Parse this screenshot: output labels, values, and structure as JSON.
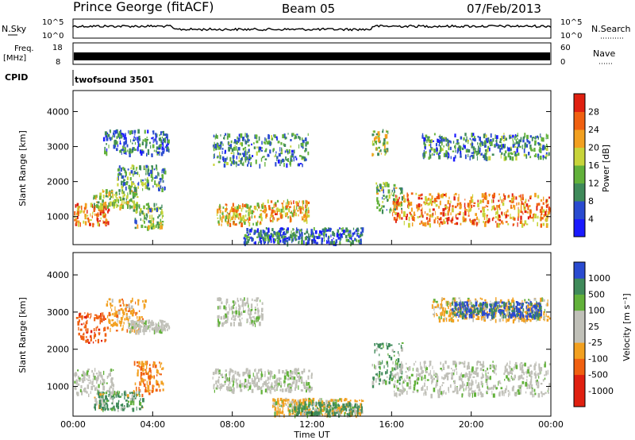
{
  "header": {
    "station": "Prince George (fitACF)",
    "beam": "Beam 05",
    "date": "07/Feb/2013"
  },
  "top_panels": {
    "nsky_label": "N.Sky",
    "nsky_ticks": [
      "10^5",
      "10^0"
    ],
    "nsearch_label": "N.Search",
    "nsearch_ticks": [
      "10^5",
      "10^0"
    ],
    "freq_label": "Freq.",
    "freq_unit": "[MHz]",
    "freq_ticks": [
      "18",
      "8"
    ],
    "nave_label": "Nave",
    "nave_ticks": [
      "60",
      "0"
    ],
    "cpid_label": "CPID",
    "cpid_value": "twofsound 3501"
  },
  "colors": {
    "power": [
      "#1a1aff",
      "#2a4bd0",
      "#3f8a5a",
      "#62b13a",
      "#c8d43a",
      "#f2a020",
      "#f06010",
      "#e02010"
    ],
    "velocity": [
      "#e02010",
      "#f06010",
      "#f2a020",
      "#c0c0b8",
      "#c0c0b8",
      "#62b13a",
      "#3f8a5a",
      "#2a4bd0"
    ]
  },
  "chart_data": [
    {
      "type": "heatmap",
      "title": "Power",
      "ylabel": "Slant Range [km]",
      "xlabel": "",
      "xlim": [
        "00:00",
        "24:00"
      ],
      "ylim": [
        200,
        4600
      ],
      "yticks": [
        "1000",
        "2000",
        "3000",
        "4000"
      ],
      "colorbar_label": "Power [dB]",
      "colorbar_ticks": [
        "4",
        "8",
        "12",
        "16",
        "20",
        "24",
        "28"
      ],
      "colorbar_range": [
        0,
        32
      ],
      "echo_regions": [
        {
          "t0": 0.0,
          "t1": 1.8,
          "r0": 800,
          "r1": 1400,
          "power": 24
        },
        {
          "t0": 1.0,
          "t1": 3.2,
          "r0": 1300,
          "r1": 1800,
          "power": 16
        },
        {
          "t0": 2.2,
          "t1": 4.6,
          "r0": 1800,
          "r1": 2500,
          "power": 12
        },
        {
          "t0": 3.0,
          "t1": 4.5,
          "r0": 700,
          "r1": 1400,
          "power": 14
        },
        {
          "t0": 1.5,
          "t1": 4.8,
          "r0": 2800,
          "r1": 3500,
          "power": 8
        },
        {
          "t0": 7.2,
          "t1": 9.5,
          "r0": 800,
          "r1": 1400,
          "power": 20
        },
        {
          "t0": 9.5,
          "t1": 11.8,
          "r0": 900,
          "r1": 1500,
          "power": 22
        },
        {
          "t0": 7.0,
          "t1": 11.8,
          "r0": 2500,
          "r1": 3400,
          "power": 10
        },
        {
          "t0": 8.5,
          "t1": 14.5,
          "r0": 250,
          "r1": 700,
          "power": 8
        },
        {
          "t0": 15.2,
          "t1": 16.5,
          "r0": 1200,
          "r1": 2000,
          "power": 14
        },
        {
          "t0": 16.0,
          "t1": 24.0,
          "r0": 800,
          "r1": 1700,
          "power": 24
        },
        {
          "t0": 17.5,
          "t1": 24.0,
          "r0": 2700,
          "r1": 3400,
          "power": 10
        },
        {
          "t0": 15.0,
          "t1": 15.8,
          "r0": 2800,
          "r1": 3500,
          "power": 16
        }
      ]
    },
    {
      "type": "heatmap",
      "title": "Velocity",
      "ylabel": "Slant Range [km]",
      "xlabel": "Time UT",
      "xlim": [
        "00:00",
        "24:00"
      ],
      "ylim": [
        200,
        4600
      ],
      "yticks": [
        "1000",
        "2000",
        "3000",
        "4000"
      ],
      "xticks": [
        "00:00",
        "04:00",
        "08:00",
        "12:00",
        "16:00",
        "20:00",
        "00:00"
      ],
      "colorbar_label": "Velocity [m s⁻¹]",
      "colorbar_ticks": [
        "-1000",
        "-500",
        "-100",
        "-25",
        "25",
        "100",
        "500",
        "1000"
      ],
      "echo_regions": [
        {
          "t0": 0.0,
          "t1": 2.0,
          "r0": 800,
          "r1": 1500,
          "vel": 0
        },
        {
          "t0": 0.1,
          "t1": 1.6,
          "r0": 2200,
          "r1": 3000,
          "vel": -800
        },
        {
          "t0": 1.6,
          "t1": 3.6,
          "r0": 2500,
          "r1": 3400,
          "vel": -300
        },
        {
          "t0": 2.8,
          "t1": 4.8,
          "r0": 2500,
          "r1": 2800,
          "vel": 0
        },
        {
          "t0": 3.0,
          "t1": 4.5,
          "r0": 800,
          "r1": 1700,
          "vel": -400
        },
        {
          "t0": 1.0,
          "t1": 3.5,
          "r0": 400,
          "r1": 900,
          "vel": 150
        },
        {
          "t0": 7.0,
          "t1": 12.0,
          "r0": 900,
          "r1": 1500,
          "vel": 0
        },
        {
          "t0": 7.2,
          "t1": 9.5,
          "r0": 2700,
          "r1": 3400,
          "vel": 0
        },
        {
          "t0": 10.0,
          "t1": 14.5,
          "r0": 250,
          "r1": 700,
          "vel": -200
        },
        {
          "t0": 11.0,
          "t1": 14.5,
          "r0": 250,
          "r1": 600,
          "vel": 150
        },
        {
          "t0": 15.0,
          "t1": 16.5,
          "r0": 1000,
          "r1": 2200,
          "vel": 200
        },
        {
          "t0": 16.0,
          "t1": 24.0,
          "r0": 800,
          "r1": 1700,
          "vel": 0
        },
        {
          "t0": 18.0,
          "t1": 24.0,
          "r0": 2800,
          "r1": 3400,
          "vel": -200
        },
        {
          "t0": 19.0,
          "t1": 23.5,
          "r0": 2900,
          "r1": 3300,
          "vel": 600
        }
      ]
    }
  ]
}
